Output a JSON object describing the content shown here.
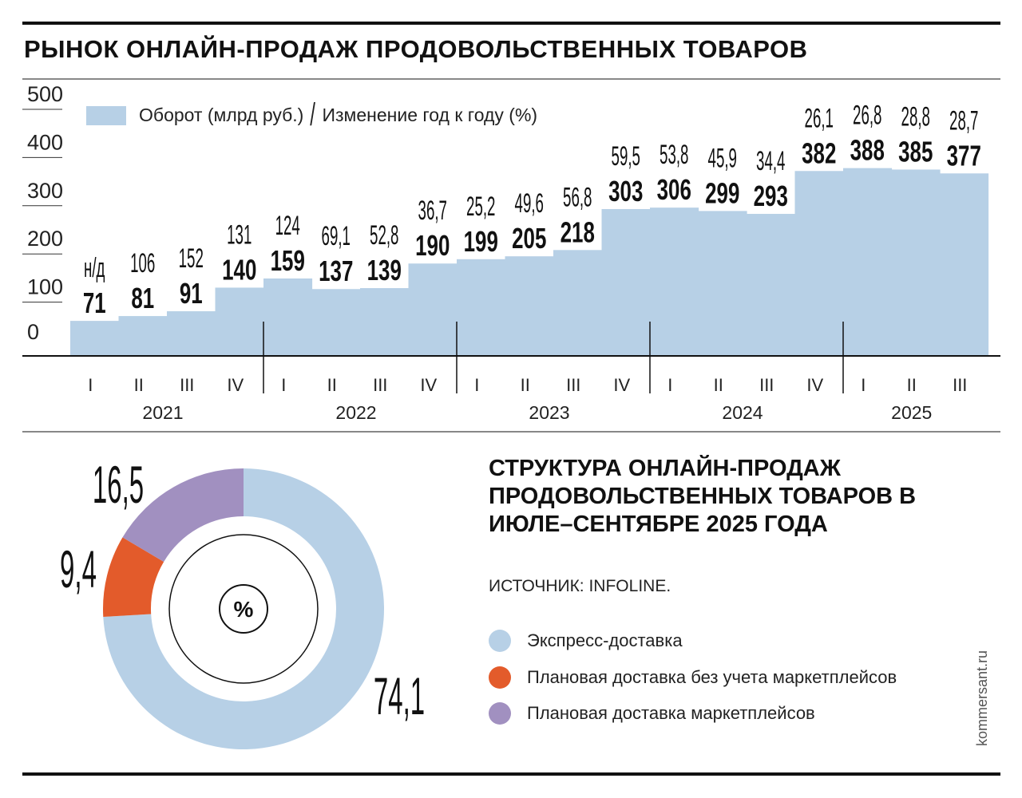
{
  "title": "РЫНОК ОНЛАЙН-ПРОДАЖ ПРОДОВОЛЬСТВЕННЫХ ТОВАРОВ",
  "credit": "kommersant.ru",
  "chart_data": [
    {
      "type": "area",
      "legend": {
        "turnover": "Оборот (млрд руб.)",
        "separator": "/",
        "yoy": "Изменение год к году (%)"
      },
      "legend_placement": "top-left",
      "color": "#b7d0e6",
      "ylim": [
        0,
        500
      ],
      "yticks": [
        "0",
        "100",
        "200",
        "300",
        "400",
        "500"
      ],
      "quarters": [
        "I",
        "II",
        "III",
        "IV",
        "I",
        "II",
        "III",
        "IV",
        "I",
        "II",
        "III",
        "IV",
        "I",
        "II",
        "III",
        "IV",
        "I",
        "II",
        "III"
      ],
      "years": [
        "2021",
        "2022",
        "2023",
        "2024",
        "2025"
      ],
      "series": [
        {
          "name": "Оборот (млрд руб.)",
          "values": [
            71,
            81,
            91,
            140,
            159,
            137,
            139,
            190,
            199,
            205,
            218,
            303,
            306,
            299,
            293,
            382,
            388,
            385,
            377
          ]
        },
        {
          "name": "Изменение год к году (%)",
          "values": [
            "н/д",
            "106",
            "152",
            "131",
            "124",
            "69,1",
            "52,8",
            "36,7",
            "25,2",
            "49,6",
            "56,8",
            "59,5",
            "53,8",
            "45,9",
            "34,4",
            "26,1",
            "26,8",
            "28,8",
            "28,7"
          ]
        }
      ]
    },
    {
      "type": "pie",
      "title": "СТРУКТУРА ОНЛАЙН-ПРОДАЖ ПРОДОВОЛЬСТВЕННЫХ ТОВАРОВ В ИЮЛЕ–СЕНТЯБРЕ 2025 ГОДА",
      "source": "ИСТОЧНИК: INFOLINE.",
      "center_label": "%",
      "slices": [
        {
          "name": "Экспресс-доставка",
          "value": 74.1,
          "label": "74,1",
          "color": "#b7d0e6"
        },
        {
          "name": "Плановая доставка без учета маркетплейсов",
          "value": 9.4,
          "label": "9,4",
          "color": "#e35b2b"
        },
        {
          "name": "Плановая доставка маркетплейсов",
          "value": 16.5,
          "label": "16,5",
          "color": "#a190c0"
        }
      ]
    }
  ]
}
